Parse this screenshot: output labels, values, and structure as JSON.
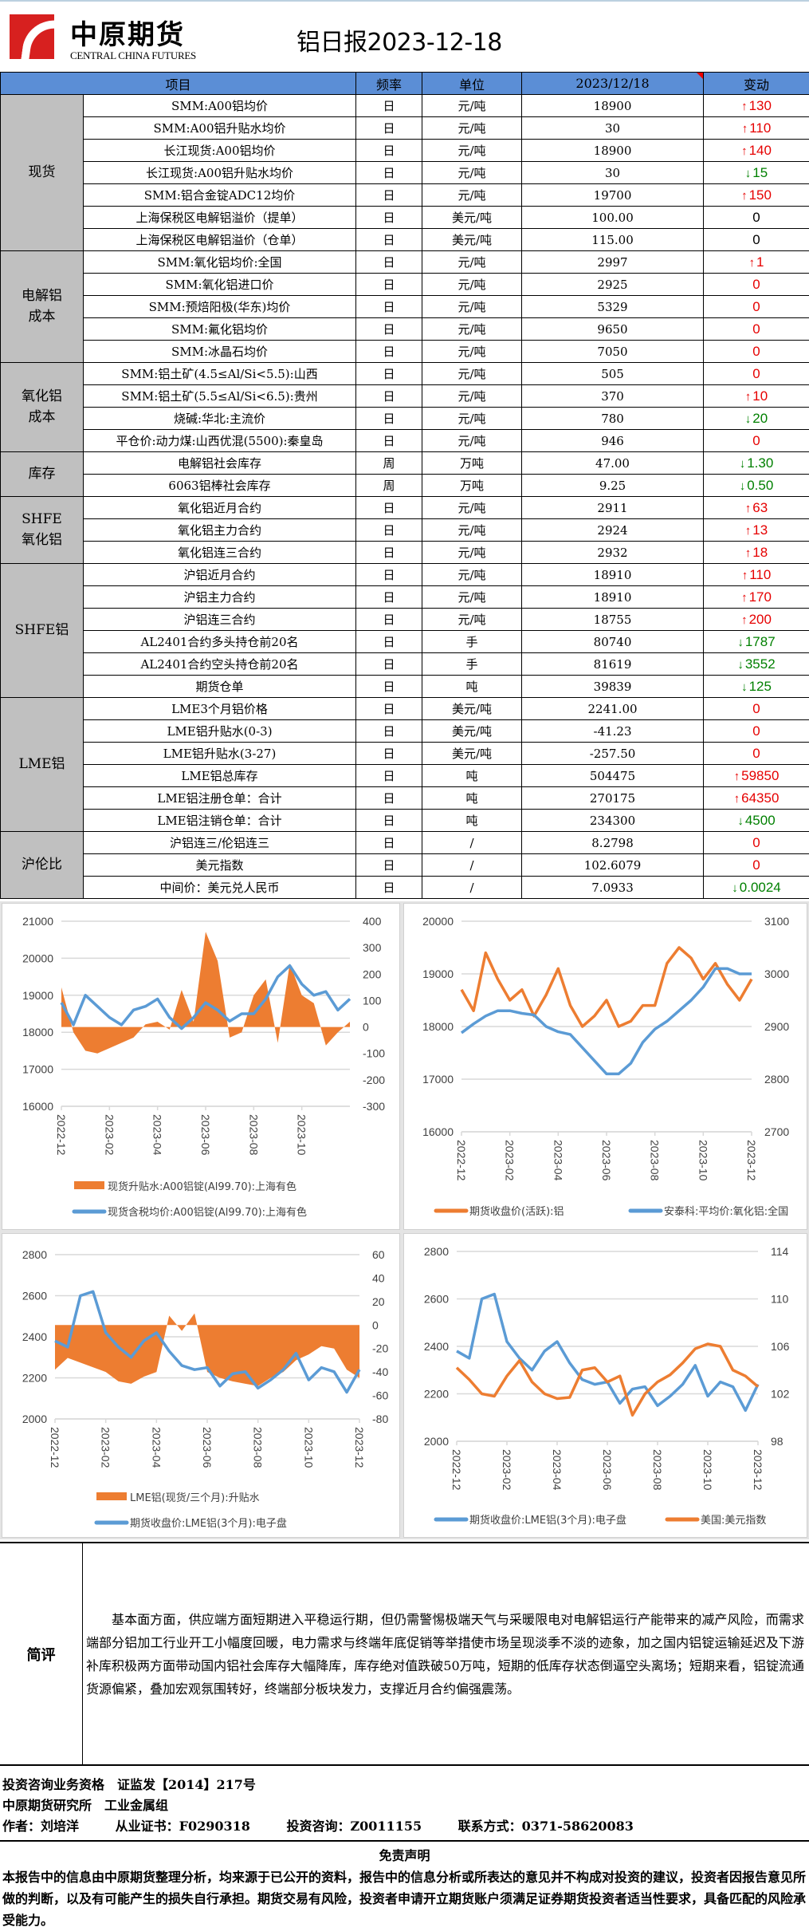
{
  "header": {
    "logo_cn": "中原期货",
    "logo_en": "CENTRAL CHINA FUTURES",
    "title": "铝日报2023-12-18"
  },
  "table": {
    "columns": [
      "项目",
      "频率",
      "单位",
      "2023/12/18",
      "变动"
    ],
    "colors": {
      "up": "#e60000",
      "down": "#008000",
      "header_bg": "#5b8ed6",
      "category_bg": "#c0c0c0"
    },
    "groups": [
      {
        "category": "现货",
        "rows": [
          {
            "item": "SMM:A00铝均价",
            "freq": "日",
            "unit": "元/吨",
            "value": "18900",
            "change": "130",
            "dir": "up"
          },
          {
            "item": "SMM:A00铝升贴水均价",
            "freq": "日",
            "unit": "元/吨",
            "value": "30",
            "change": "110",
            "dir": "up"
          },
          {
            "item": "长江现货:A00铝均价",
            "freq": "日",
            "unit": "元/吨",
            "value": "18900",
            "change": "140",
            "dir": "up"
          },
          {
            "item": "长江现货:A00铝升贴水均价",
            "freq": "日",
            "unit": "元/吨",
            "value": "30",
            "change": "15",
            "dir": "down"
          },
          {
            "item": "SMM:铝合金锭ADC12均价",
            "freq": "日",
            "unit": "元/吨",
            "value": "19700",
            "change": "150",
            "dir": "up"
          },
          {
            "item": "上海保税区电解铝溢价（提单）",
            "freq": "日",
            "unit": "美元/吨",
            "value": "100.00",
            "change": "0",
            "dir": "zero"
          },
          {
            "item": "上海保税区电解铝溢价（仓单）",
            "freq": "日",
            "unit": "美元/吨",
            "value": "115.00",
            "change": "0",
            "dir": "zero"
          }
        ]
      },
      {
        "category": "电解铝\n成本",
        "rows": [
          {
            "item": "SMM:氧化铝均价:全国",
            "freq": "日",
            "unit": "元/吨",
            "value": "2997",
            "change": "1",
            "dir": "up"
          },
          {
            "item": "SMM:氧化铝进口价",
            "freq": "日",
            "unit": "元/吨",
            "value": "2925",
            "change": "0",
            "dir": "flat"
          },
          {
            "item": "SMM:预焙阳极(华东)均价",
            "freq": "日",
            "unit": "元/吨",
            "value": "5329",
            "change": "0",
            "dir": "flat"
          },
          {
            "item": "SMM:氟化铝均价",
            "freq": "日",
            "unit": "元/吨",
            "value": "9650",
            "change": "0",
            "dir": "flat"
          },
          {
            "item": "SMM:冰晶石均价",
            "freq": "日",
            "unit": "元/吨",
            "value": "7050",
            "change": "0",
            "dir": "flat"
          }
        ]
      },
      {
        "category": "氧化铝\n成本",
        "rows": [
          {
            "item": "SMM:铝土矿(4.5≤Al/Si<5.5):山西",
            "freq": "日",
            "unit": "元/吨",
            "value": "505",
            "change": "0",
            "dir": "flat"
          },
          {
            "item": "SMM:铝土矿(5.5≤Al/Si<6.5):贵州",
            "freq": "日",
            "unit": "元/吨",
            "value": "370",
            "change": "10",
            "dir": "up"
          },
          {
            "item": "烧碱:华北:主流价",
            "freq": "日",
            "unit": "元/吨",
            "value": "780",
            "change": "20",
            "dir": "down"
          },
          {
            "item": "平仓价:动力煤:山西优混(5500):秦皇岛",
            "freq": "日",
            "unit": "元/吨",
            "value": "946",
            "change": "0",
            "dir": "flat"
          }
        ]
      },
      {
        "category": "库存",
        "rows": [
          {
            "item": "电解铝社会库存",
            "freq": "周",
            "unit": "万吨",
            "value": "47.00",
            "change": "1.30",
            "dir": "down"
          },
          {
            "item": "6063铝棒社会库存",
            "freq": "周",
            "unit": "万吨",
            "value": "9.25",
            "change": "0.50",
            "dir": "down"
          }
        ]
      },
      {
        "category": "SHFE\n氧化铝",
        "rows": [
          {
            "item": "氧化铝近月合约",
            "freq": "日",
            "unit": "元/吨",
            "value": "2911",
            "change": "63",
            "dir": "up"
          },
          {
            "item": "氧化铝主力合约",
            "freq": "日",
            "unit": "元/吨",
            "value": "2924",
            "change": "13",
            "dir": "up"
          },
          {
            "item": "氧化铝连三合约",
            "freq": "日",
            "unit": "元/吨",
            "value": "2932",
            "change": "18",
            "dir": "up"
          }
        ]
      },
      {
        "category": "SHFE铝",
        "rows": [
          {
            "item": "沪铝近月合约",
            "freq": "日",
            "unit": "元/吨",
            "value": "18910",
            "change": "110",
            "dir": "up"
          },
          {
            "item": "沪铝主力合约",
            "freq": "日",
            "unit": "元/吨",
            "value": "18910",
            "change": "170",
            "dir": "up"
          },
          {
            "item": "沪铝连三合约",
            "freq": "日",
            "unit": "元/吨",
            "value": "18755",
            "change": "200",
            "dir": "up"
          },
          {
            "item": "AL2401合约多头持仓前20名",
            "freq": "日",
            "unit": "手",
            "value": "80740",
            "change": "1787",
            "dir": "down"
          },
          {
            "item": "AL2401合约空头持仓前20名",
            "freq": "日",
            "unit": "手",
            "value": "81619",
            "change": "3552",
            "dir": "down"
          },
          {
            "item": "期货仓单",
            "freq": "日",
            "unit": "吨",
            "value": "39839",
            "change": "125",
            "dir": "down"
          }
        ]
      },
      {
        "category": "LME铝",
        "rows": [
          {
            "item": "LME3个月铝价格",
            "freq": "日",
            "unit": "美元/吨",
            "value": "2241.00",
            "change": "0",
            "dir": "flat"
          },
          {
            "item": "LME铝升贴水(0-3)",
            "freq": "日",
            "unit": "美元/吨",
            "value": "-41.23",
            "change": "0",
            "dir": "flat"
          },
          {
            "item": "LME铝升贴水(3-27)",
            "freq": "日",
            "unit": "美元/吨",
            "value": "-257.50",
            "change": "0",
            "dir": "flat"
          },
          {
            "item": "LME铝总库存",
            "freq": "日",
            "unit": "吨",
            "value": "504475",
            "change": "59850",
            "dir": "up"
          },
          {
            "item": "LME铝注册仓单：合计",
            "freq": "日",
            "unit": "吨",
            "value": "270175",
            "change": "64350",
            "dir": "up"
          },
          {
            "item": "LME铝注销仓单：合计",
            "freq": "日",
            "unit": "吨",
            "value": "234300",
            "change": "4500",
            "dir": "down"
          }
        ]
      },
      {
        "category": "沪伦比",
        "rows": [
          {
            "item": "沪铝连三/伦铝连三",
            "freq": "日",
            "unit": "/",
            "value": "8.2798",
            "change": "0",
            "dir": "flat"
          },
          {
            "item": "美元指数",
            "freq": "日",
            "unit": "/",
            "value": "102.6079",
            "change": "0",
            "dir": "flat"
          },
          {
            "item": "中间价：美元兑人民币",
            "freq": "日",
            "unit": "/",
            "value": "7.0933",
            "change": "0.0024",
            "dir": "down"
          }
        ]
      }
    ]
  },
  "chart_data": [
    {
      "type": "area+line",
      "title": "",
      "x": [
        "2022-12",
        "2022-12b",
        "2023-01",
        "2023-01b",
        "2023-02",
        "2023-02b",
        "2023-03",
        "2023-03b",
        "2023-04",
        "2023-04b",
        "2023-05",
        "2023-05b",
        "2023-06",
        "2023-06b",
        "2023-07",
        "2023-07b",
        "2023-08",
        "2023-08b",
        "2023-09",
        "2023-09b",
        "2023-10",
        "2023-10b",
        "2023-11",
        "2023-11b",
        "2023-12"
      ],
      "xticks": [
        "2022-12",
        "2023-02",
        "2023-04",
        "2023-06",
        "2023-08",
        "2023-10"
      ],
      "y_left": {
        "range": [
          16000,
          21000
        ],
        "ticks": [
          16000,
          17000,
          18000,
          19000,
          20000,
          21000
        ]
      },
      "y_right": {
        "range": [
          -300,
          400
        ],
        "ticks": [
          -300,
          -200,
          -100,
          0,
          100,
          200,
          300,
          400
        ]
      },
      "series": [
        {
          "name": "现货升贴水:A00铝锭(Al99.70):上海有色",
          "kind": "area",
          "axis": "right",
          "color": "#ed7d31",
          "values": [
            150,
            -20,
            -90,
            -100,
            -80,
            -60,
            -40,
            10,
            20,
            -10,
            140,
            20,
            360,
            250,
            -40,
            -20,
            120,
            180,
            -60,
            240,
            120,
            90,
            -70,
            -20,
            20
          ]
        },
        {
          "name": "现货含税均价:A00铝锭(Al99.70):上海有色",
          "kind": "line",
          "axis": "left",
          "color": "#5b9bd5",
          "values": [
            18800,
            18200,
            19000,
            18700,
            18400,
            18200,
            18600,
            18700,
            18900,
            18400,
            18100,
            18400,
            18800,
            18600,
            18300,
            18500,
            18500,
            18900,
            19500,
            19800,
            19300,
            19000,
            19100,
            18600,
            18900
          ]
        }
      ],
      "legend": "bottom"
    },
    {
      "type": "line",
      "title": "",
      "x": [
        "2022-12",
        "2022-12b",
        "2023-01",
        "2023-01b",
        "2023-02",
        "2023-02b",
        "2023-03",
        "2023-03b",
        "2023-04",
        "2023-04b",
        "2023-05",
        "2023-05b",
        "2023-06",
        "2023-06b",
        "2023-07",
        "2023-07b",
        "2023-08",
        "2023-08b",
        "2023-09",
        "2023-09b",
        "2023-10",
        "2023-10b",
        "2023-11",
        "2023-11b",
        "2023-12"
      ],
      "xticks": [
        "2022-12",
        "2023-02",
        "2023-04",
        "2023-06",
        "2023-08",
        "2023-10",
        "2023-12"
      ],
      "y_left": {
        "range": [
          16000,
          20000
        ],
        "ticks": [
          16000,
          17000,
          18000,
          19000,
          20000
        ]
      },
      "y_right": {
        "range": [
          2700,
          3100
        ],
        "ticks": [
          2700,
          2800,
          2900,
          3000,
          3100
        ]
      },
      "series": [
        {
          "name": "期货收盘价(活跃):铝",
          "axis": "left",
          "color": "#ed7d31",
          "values": [
            18700,
            18300,
            19400,
            18900,
            18500,
            18700,
            18200,
            18600,
            19100,
            18400,
            18000,
            18200,
            18500,
            18000,
            18100,
            18400,
            18400,
            19200,
            19500,
            19300,
            18900,
            19200,
            18800,
            18500,
            18900
          ]
        },
        {
          "name": "安泰科:平均价:氧化铝:全国",
          "axis": "right",
          "color": "#5b9bd5",
          "values": [
            2888,
            2905,
            2920,
            2930,
            2930,
            2925,
            2922,
            2900,
            2890,
            2885,
            2860,
            2835,
            2810,
            2810,
            2830,
            2870,
            2895,
            2910,
            2930,
            2950,
            2975,
            3010,
            3010,
            3000,
            3000
          ]
        }
      ],
      "legend": "bottom"
    },
    {
      "type": "area+line",
      "title": "",
      "x": [
        "2022-12",
        "2022-12b",
        "2023-01",
        "2023-01b",
        "2023-02",
        "2023-02b",
        "2023-03",
        "2023-03b",
        "2023-04",
        "2023-04b",
        "2023-05",
        "2023-05b",
        "2023-06",
        "2023-06b",
        "2023-07",
        "2023-07b",
        "2023-08",
        "2023-08b",
        "2023-09",
        "2023-09b",
        "2023-10",
        "2023-10b",
        "2023-11",
        "2023-11b",
        "2023-12"
      ],
      "xticks": [
        "2022-12",
        "2023-02",
        "2023-04",
        "2023-06",
        "2023-08",
        "2023-10",
        "2023-12"
      ],
      "y_left": {
        "range": [
          2000,
          2800
        ],
        "ticks": [
          2000,
          2200,
          2400,
          2600,
          2800
        ]
      },
      "y_right": {
        "range": [
          -80,
          60
        ],
        "ticks": [
          -80,
          -60,
          -40,
          -20,
          0,
          20,
          40,
          60
        ]
      },
      "series": [
        {
          "name": "LME铝(现货/三个月):升贴水",
          "kind": "area",
          "axis": "right",
          "color": "#ed7d31",
          "values": [
            -38,
            -28,
            -32,
            -36,
            -40,
            -48,
            -50,
            -44,
            -40,
            8,
            -5,
            10,
            -40,
            -45,
            -48,
            -50,
            -52,
            -45,
            -40,
            -30,
            -25,
            -18,
            -20,
            -38,
            -45
          ]
        },
        {
          "name": "期货收盘价:LME铝(3个月):电子盘",
          "kind": "line",
          "axis": "left",
          "color": "#5b9bd5",
          "values": [
            2380,
            2350,
            2600,
            2620,
            2420,
            2350,
            2300,
            2380,
            2420,
            2330,
            2260,
            2240,
            2250,
            2160,
            2220,
            2230,
            2150,
            2190,
            2240,
            2320,
            2190,
            2250,
            2230,
            2130,
            2240
          ]
        }
      ],
      "legend": "bottom"
    },
    {
      "type": "line",
      "title": "",
      "x": [
        "2022-12",
        "2022-12b",
        "2023-01",
        "2023-01b",
        "2023-02",
        "2023-02b",
        "2023-03",
        "2023-03b",
        "2023-04",
        "2023-04b",
        "2023-05",
        "2023-05b",
        "2023-06",
        "2023-06b",
        "2023-07",
        "2023-07b",
        "2023-08",
        "2023-08b",
        "2023-09",
        "2023-09b",
        "2023-10",
        "2023-10b",
        "2023-11",
        "2023-11b",
        "2023-12"
      ],
      "xticks": [
        "2022-12",
        "2023-02",
        "2023-04",
        "2023-06",
        "2023-08",
        "2023-10",
        "2023-12"
      ],
      "y_left": {
        "range": [
          2000,
          2800
        ],
        "ticks": [
          2000,
          2200,
          2400,
          2600,
          2800
        ]
      },
      "y_right": {
        "range": [
          98,
          114
        ],
        "ticks": [
          98,
          102,
          106,
          110,
          114
        ]
      },
      "series": [
        {
          "name": "期货收盘价:LME铝(3个月):电子盘",
          "axis": "left",
          "color": "#5b9bd5",
          "values": [
            2380,
            2350,
            2600,
            2620,
            2420,
            2350,
            2300,
            2380,
            2420,
            2330,
            2260,
            2240,
            2250,
            2160,
            2220,
            2230,
            2150,
            2190,
            2240,
            2320,
            2190,
            2250,
            2230,
            2130,
            2240
          ]
        },
        {
          "name": "美国:美元指数",
          "axis": "right",
          "color": "#ed7d31",
          "values": [
            104.2,
            103.2,
            102.0,
            101.8,
            103.5,
            104.8,
            103.0,
            102.0,
            101.6,
            101.7,
            104.0,
            104.2,
            103.0,
            103.5,
            100.2,
            102.0,
            103.0,
            103.6,
            104.6,
            105.8,
            106.2,
            106.0,
            104.0,
            103.5,
            102.6
          ]
        }
      ],
      "legend": "bottom"
    }
  ],
  "review": {
    "label": "简评",
    "text": "基本面方面，供应端方面短期进入平稳运行期，但仍需警惕极端天气与采暖限电对电解铝运行产能带来的减产风险，而需求端部分铝加工行业开工小幅度回暖，电力需求与终端年底促销等举措使市场呈现淡季不淡的迹象，加之国内铝锭运输延迟及下游补库积极两方面带动国内铝社会库存大幅降库，库存绝对值跌破50万吨，短期的低库存状态倒逼空头离场；短期来看，铝锭流通货源偏紧，叠加宏观氛围转好，终端部分板块发力，支撑近月合约偏强震荡。"
  },
  "info": {
    "line1": "投资咨询业务资格　证监发【2014】217号",
    "line2": "中原期货研究所　工业金属组",
    "author": "作者：刘培洋",
    "cert": "从业证书：F0290318",
    "consult": "投资咨询：Z0011155",
    "contact": "联系方式：0371-58620083"
  },
  "disclaimer": {
    "title": "免责声明",
    "text": "本报告中的信息由中原期货整理分析，均来源于已公开的资料，报告中的信息分析或所表达的意见并不构成对投资的建议，投资者因报告意见所做的判断，以及有可能产生的损失自行承担。期货交易有风险，投资者申请开立期货账户须满足证券期货投资者适当性要求，具备匹配的风险承受能力。"
  }
}
